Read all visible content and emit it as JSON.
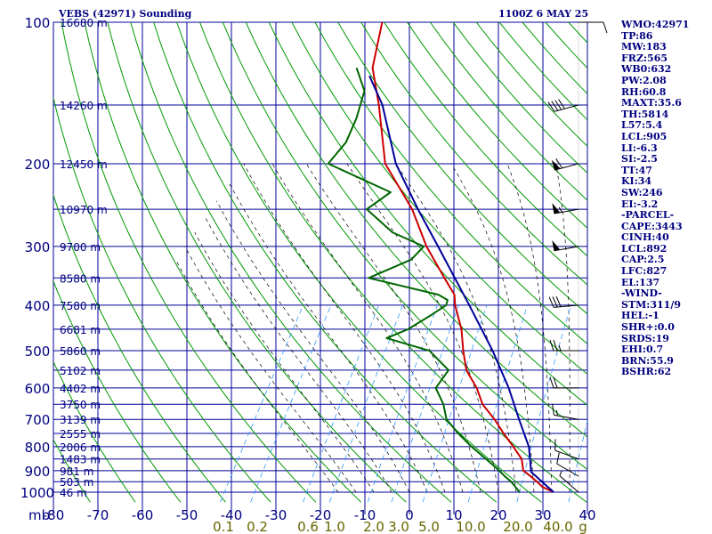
{
  "header": {
    "station": "VEBS (42971) Sounding",
    "time": "1100Z  6 MAY 25"
  },
  "indices": [
    "WMO:42971",
    "TP:86",
    "MW:183",
    "FRZ:565",
    "WB0:632",
    "PW:2.08",
    "RH:60.8",
    "MAXT:35.6",
    "TH:5814",
    "L57:5.4",
    "LCL:905",
    "LI:-6.3",
    "SI:-2.5",
    "TT:47",
    "KI:34",
    "SW:246",
    "EI:-3.2",
    "-PARCEL-",
    "CAPE:3443",
    "CINH:40",
    "LCL:892",
    "CAP:2.5",
    "LFC:827",
    "EL:137",
    "-WIND-",
    "STM:311/9",
    "HEL:-1",
    "SHR+:0.0",
    "SRDS:19",
    "EHI:0.7",
    "BRN:55.9",
    "BSHR:62"
  ],
  "colors": {
    "isotherm_grid": "#000099",
    "isobar_grid": "#000099",
    "dry_adiabat": "#009900",
    "moist_adiabat": "#000000",
    "mixing_ratio": "#3399ff",
    "temperature": "#cc0000",
    "dewpoint": "#006600",
    "parcel": "#000099",
    "mixing_ratio_labels": "#666600",
    "label_text": "#000080"
  },
  "chart_data": {
    "type": "skew-t log-p",
    "y_scale": "log",
    "ylim": [
      1000,
      100
    ],
    "xlim": [
      -80,
      40
    ],
    "ylabel": "mb",
    "pressure_levels": [
      100,
      200,
      300,
      400,
      500,
      600,
      700,
      800,
      900,
      1000
    ],
    "temperature_ticks": [
      -80,
      -70,
      -60,
      -50,
      -40,
      -30,
      -20,
      -10,
      0,
      10,
      20,
      30,
      40
    ],
    "height_labels": [
      {
        "p": 100,
        "label": "16680 m"
      },
      {
        "p": 150,
        "label": "14260 m"
      },
      {
        "p": 200,
        "label": "12450 m"
      },
      {
        "p": 250,
        "label": "10970 m"
      },
      {
        "p": 300,
        "label": "9700 m"
      },
      {
        "p": 350,
        "label": "8580 m"
      },
      {
        "p": 400,
        "label": "7580 m"
      },
      {
        "p": 450,
        "label": "6681 m"
      },
      {
        "p": 500,
        "label": "5860 m"
      },
      {
        "p": 550,
        "label": "5102 m"
      },
      {
        "p": 600,
        "label": "4402 m"
      },
      {
        "p": 650,
        "label": "3750 m"
      },
      {
        "p": 700,
        "label": "3139 m"
      },
      {
        "p": 750,
        "label": "2555 m"
      },
      {
        "p": 800,
        "label": "2006 m"
      },
      {
        "p": 850,
        "label": "1483 m"
      },
      {
        "p": 900,
        "label": "981 m"
      },
      {
        "p": 950,
        "label": "503 m"
      },
      {
        "p": 1000,
        "label": "46 m"
      }
    ],
    "mixing_ratio_labels": [
      "0.1",
      "0.2",
      "0.6",
      "1.0",
      "2.0",
      "3.0",
      "5.0",
      "10.0",
      "20.0",
      "40.0",
      "g"
    ],
    "series": [
      {
        "name": "temperature",
        "points": [
          [
            1000,
            32.4
          ],
          [
            975,
            29.2
          ],
          [
            950,
            27.2
          ],
          [
            925,
            25.0
          ],
          [
            900,
            22.6
          ],
          [
            850,
            20.6
          ],
          [
            800,
            17.0
          ],
          [
            750,
            13.0
          ],
          [
            700,
            9.0
          ],
          [
            650,
            4.2
          ],
          [
            600,
            0.6
          ],
          [
            550,
            -4.2
          ],
          [
            500,
            -7.6
          ],
          [
            450,
            -11.0
          ],
          [
            400,
            -15.8
          ],
          [
            380,
            -17.4
          ],
          [
            350,
            -22.0
          ],
          [
            300,
            -30.4
          ],
          [
            250,
            -38.8
          ],
          [
            200,
            -51.2
          ],
          [
            150,
            -60.8
          ],
          [
            125,
            -67.4
          ],
          [
            100,
            -71.6
          ]
        ]
      },
      {
        "name": "dewpoint",
        "points": [
          [
            1000,
            24.8
          ],
          [
            950,
            21.4
          ],
          [
            925,
            19.2
          ],
          [
            900,
            17.2
          ],
          [
            850,
            12.6
          ],
          [
            800,
            7.6
          ],
          [
            750,
            2.8
          ],
          [
            700,
            -1.8
          ],
          [
            650,
            -4.6
          ],
          [
            600,
            -8.6
          ],
          [
            550,
            -8.2
          ],
          [
            500,
            -15.2
          ],
          [
            470,
            -26.6
          ],
          [
            450,
            -23.0
          ],
          [
            420,
            -19.8
          ],
          [
            400,
            -17.8
          ],
          [
            390,
            -18.2
          ],
          [
            380,
            -21.0
          ],
          [
            350,
            -39.0
          ],
          [
            320,
            -32.0
          ],
          [
            300,
            -31.0
          ],
          [
            280,
            -40.0
          ],
          [
            250,
            -49.0
          ],
          [
            230,
            -46.0
          ],
          [
            200,
            -64.0
          ],
          [
            180,
            -63.0
          ],
          [
            160,
            -64.0
          ],
          [
            140,
            -66.0
          ],
          [
            125,
            -71.0
          ]
        ]
      },
      {
        "name": "parcel",
        "points": [
          [
            1000,
            32.4
          ],
          [
            905,
            24.5
          ],
          [
            850,
            22.5
          ],
          [
            800,
            20.5
          ],
          [
            700,
            14.5
          ],
          [
            600,
            7.8
          ],
          [
            500,
            -1.0
          ],
          [
            400,
            -12.6
          ],
          [
            300,
            -27.8
          ],
          [
            250,
            -37.5
          ],
          [
            200,
            -48.8
          ],
          [
            150,
            -60.0
          ],
          [
            130,
            -67.0
          ]
        ]
      }
    ],
    "wind_barbs": [
      {
        "p": 1000,
        "dir": 311,
        "spd": 5
      },
      {
        "p": 925,
        "dir": 300,
        "spd": 10
      },
      {
        "p": 850,
        "dir": 290,
        "spd": 10
      },
      {
        "p": 700,
        "dir": 280,
        "spd": 15
      },
      {
        "p": 600,
        "dir": 270,
        "spd": 20
      },
      {
        "p": 500,
        "dir": 270,
        "spd": 25
      },
      {
        "p": 400,
        "dir": 265,
        "spd": 30
      },
      {
        "p": 300,
        "dir": 260,
        "spd": 50
      },
      {
        "p": 250,
        "dir": 260,
        "spd": 55
      },
      {
        "p": 200,
        "dir": 255,
        "spd": 60
      },
      {
        "p": 150,
        "dir": 255,
        "spd": 40
      },
      {
        "p": 100,
        "dir": 90,
        "spd": 10
      }
    ]
  }
}
